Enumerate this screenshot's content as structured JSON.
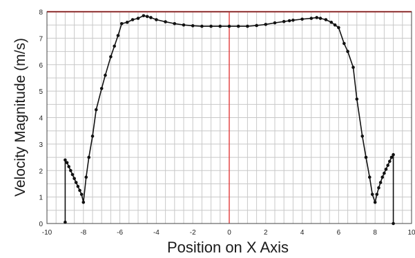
{
  "chart_data": {
    "type": "line",
    "title": "",
    "xlabel": "Position on X Axis",
    "ylabel": "Velocity Magnitude (m/s)",
    "xlim": [
      -10,
      10
    ],
    "ylim": [
      0,
      8
    ],
    "x_ticks": [
      -10,
      -8,
      -6,
      -4,
      -2,
      0,
      2,
      4,
      6,
      8,
      10
    ],
    "y_ticks": [
      0,
      1,
      2,
      3,
      4,
      5,
      6,
      7,
      8
    ],
    "grid": true,
    "legend": "none",
    "colors": {
      "line": "#111111",
      "marker": "#111111",
      "reference": "#e23a3a",
      "grid": "#c8c8c8"
    },
    "reference_lines": {
      "x": 0,
      "y": 8
    },
    "series": [
      {
        "x": [
          -9.0,
          -9.0,
          -8.9,
          -8.8,
          -8.7,
          -8.6,
          -8.5,
          -8.4,
          -8.3,
          -8.2,
          -8.1,
          -8.0,
          -7.85,
          -7.7,
          -7.5,
          -7.3,
          -7.0,
          -6.8,
          -6.5,
          -6.3,
          -6.1,
          -5.9,
          -5.6,
          -5.3,
          -5.0,
          -4.7,
          -4.5,
          -4.3,
          -4.0,
          -3.5,
          -3.0,
          -2.5,
          -2.0,
          -1.5,
          -1.0,
          -0.5,
          0.0,
          0.5,
          1.0,
          1.5,
          2.0,
          2.5,
          3.0,
          3.3,
          3.5,
          4.0,
          4.5,
          4.8,
          5.0,
          5.3,
          5.6,
          5.8,
          6.0,
          6.3,
          6.5,
          6.8,
          7.0,
          7.3,
          7.5,
          7.7,
          7.85,
          8.0,
          8.1,
          8.2,
          8.3,
          8.4,
          8.5,
          8.6,
          8.7,
          8.8,
          8.9,
          9.0,
          9.0
        ],
        "y": [
          0.05,
          2.4,
          2.3,
          2.15,
          2.0,
          1.85,
          1.7,
          1.55,
          1.4,
          1.25,
          1.1,
          0.8,
          1.75,
          2.5,
          3.3,
          4.3,
          5.1,
          5.6,
          6.3,
          6.7,
          7.1,
          7.55,
          7.6,
          7.7,
          7.75,
          7.85,
          7.82,
          7.78,
          7.7,
          7.62,
          7.55,
          7.5,
          7.47,
          7.45,
          7.45,
          7.45,
          7.45,
          7.45,
          7.45,
          7.48,
          7.52,
          7.58,
          7.63,
          7.66,
          7.68,
          7.72,
          7.75,
          7.78,
          7.75,
          7.7,
          7.6,
          7.5,
          7.4,
          6.8,
          6.5,
          5.9,
          4.7,
          3.3,
          2.5,
          1.75,
          1.1,
          0.8,
          1.1,
          1.35,
          1.55,
          1.75,
          1.9,
          2.05,
          2.2,
          2.35,
          2.5,
          2.6,
          0.0
        ]
      }
    ]
  }
}
